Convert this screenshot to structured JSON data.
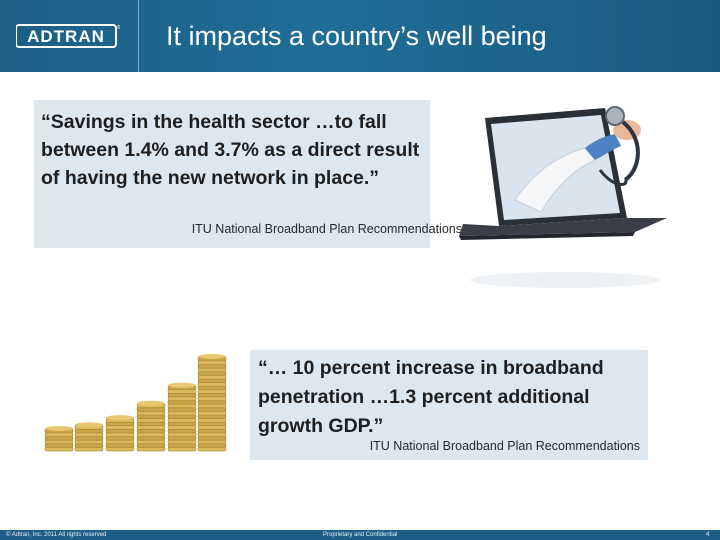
{
  "header": {
    "logo_text": "ADTRAN",
    "title": "It impacts a country’s well being"
  },
  "quote1": {
    "text": "“Savings in the health sector …to fall between 1.4% and 3.7% as a direct result of having the new network in place.”",
    "source": "ITU National Broadband Plan Recommendations"
  },
  "quote2": {
    "text": "“… 10 percent increase in broadband penetration …1.3 percent additional growth GDP.”",
    "source": "ITU National Broadband Plan Recommendations"
  },
  "images": {
    "laptop": "doctor-with-stethoscope-from-laptop",
    "coins": "rising-coin-stacks"
  },
  "footer": {
    "copyright": "© Adtran, Inc. 2011 All rights reserved",
    "confidential": "Proprietary and Confidential",
    "page": "4"
  },
  "colors": {
    "header_blue": "#1f6e97",
    "quote_bg": "#dce7f0"
  }
}
